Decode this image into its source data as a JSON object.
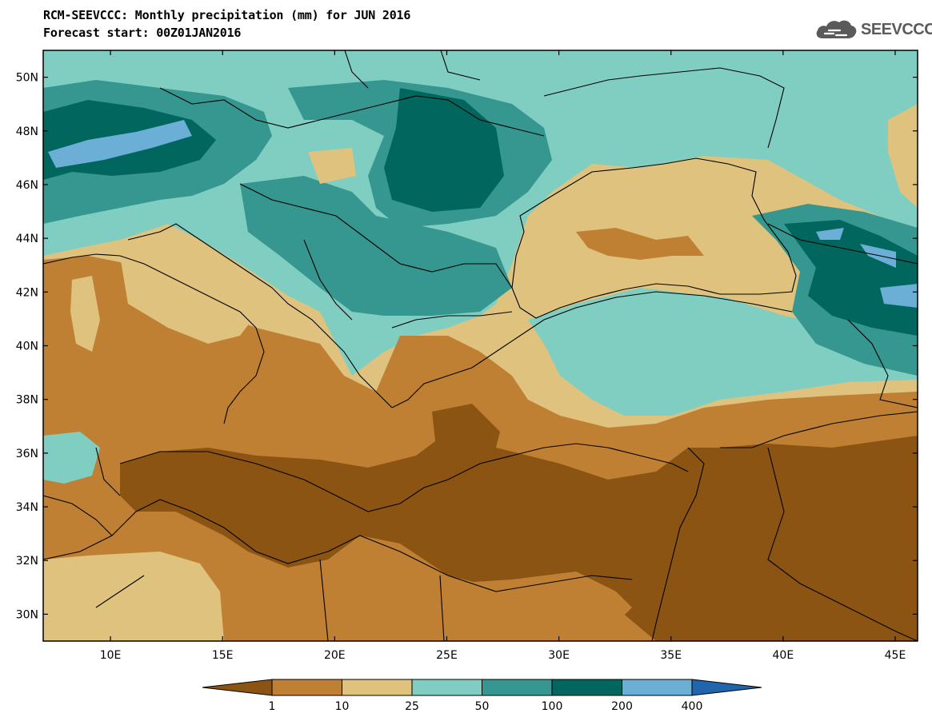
{
  "header": {
    "title_line1": "RCM-SEEVCCC: Monthly precipitation (mm) for JUN 2016",
    "title_line2": "Forecast start: 00Z01JAN2016"
  },
  "logo": {
    "text": "SEEVCCC",
    "icon": "cloud-icon",
    "color": "#5a5a5a"
  },
  "map": {
    "lon_range": [
      7,
      46
    ],
    "lat_range": [
      29,
      51
    ],
    "lat_ticks": [
      {
        "value": 50,
        "label": "50N"
      },
      {
        "value": 48,
        "label": "48N"
      },
      {
        "value": 46,
        "label": "46N"
      },
      {
        "value": 44,
        "label": "44N"
      },
      {
        "value": 42,
        "label": "42N"
      },
      {
        "value": 40,
        "label": "40N"
      },
      {
        "value": 38,
        "label": "38N"
      },
      {
        "value": 36,
        "label": "36N"
      },
      {
        "value": 34,
        "label": "34N"
      },
      {
        "value": 32,
        "label": "32N"
      },
      {
        "value": 30,
        "label": "30N"
      }
    ],
    "lon_ticks": [
      {
        "value": 10,
        "label": "10E"
      },
      {
        "value": 15,
        "label": "15E"
      },
      {
        "value": 20,
        "label": "20E"
      },
      {
        "value": 25,
        "label": "25E"
      },
      {
        "value": 30,
        "label": "30E"
      },
      {
        "value": 35,
        "label": "35E"
      },
      {
        "value": 40,
        "label": "40E"
      },
      {
        "value": 45,
        "label": "45E"
      }
    ]
  },
  "legend": {
    "colors": [
      "#8c5412",
      "#bf8033",
      "#dfc27d",
      "#80cdc1",
      "#35978f",
      "#01665e",
      "#6baed6",
      "#2166ac"
    ],
    "labels": [
      "1",
      "10",
      "25",
      "50",
      "100",
      "200",
      "400"
    ]
  }
}
